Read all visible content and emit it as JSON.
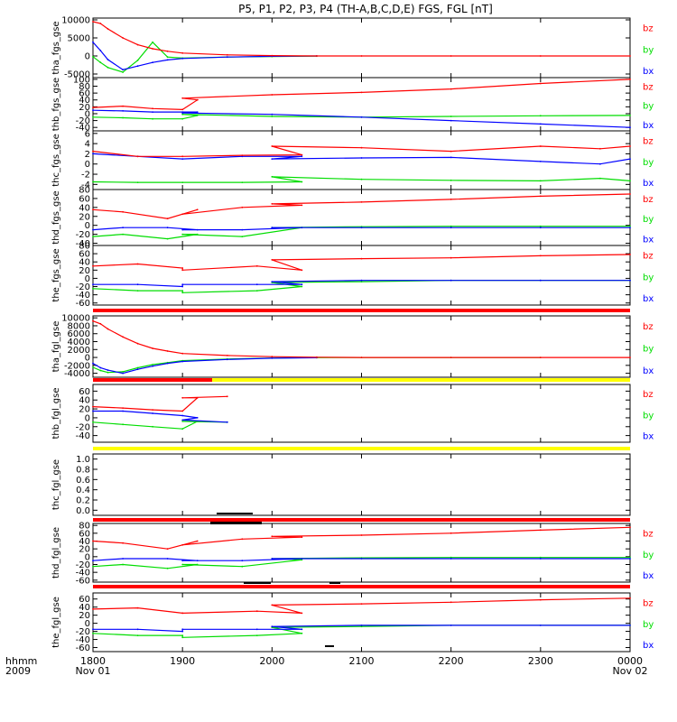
{
  "title": "P5, P1, P2, P3, P4 (TH-A,B,C,D,E) FGS, FGL [nT]",
  "colors": {
    "bx": "#0000ff",
    "by": "#00dd00",
    "bz": "#ff0000",
    "bar_red": "#ff0000",
    "bar_yellow": "#ffff00",
    "bar_black": "#000000"
  },
  "time_axis": {
    "row_label": "hhmm",
    "year_label": "2009",
    "ticks": [
      "1800",
      "1900",
      "2000",
      "2100",
      "2200",
      "2300",
      "0000"
    ],
    "date_labels": [
      "Nov 01",
      "Nov 02"
    ]
  },
  "chart_data": [
    {
      "type": "line",
      "panel": "tha_fgs_gse",
      "ylabel": "tha_fgs_gse",
      "yticks": [
        "10000",
        "5000",
        "0",
        "-5000"
      ],
      "ylim": [
        -6000,
        10500
      ],
      "legend": [
        "bz",
        "by",
        "bx"
      ],
      "x": [
        "1800",
        "1805",
        "1810",
        "1820",
        "1830",
        "1840",
        "1850",
        "1900",
        "1930",
        "2000",
        "2030",
        "2100",
        "2200",
        "2300",
        "0000"
      ],
      "series": [
        {
          "name": "bz",
          "values": [
            9500,
            9000,
            7500,
            5000,
            3100,
            2000,
            1300,
            800,
            300,
            100,
            0,
            0,
            0,
            0,
            0
          ]
        },
        {
          "name": "by",
          "values": [
            -200,
            -1800,
            -3200,
            -4500,
            -1200,
            3800,
            -300,
            -600,
            -300,
            -150,
            -50,
            null,
            null,
            null,
            null
          ]
        },
        {
          "name": "bx",
          "values": [
            3800,
            1500,
            -1000,
            -3800,
            -2800,
            -1800,
            -1100,
            -700,
            -300,
            -100,
            0,
            null,
            null,
            null,
            null
          ]
        }
      ]
    },
    {
      "type": "line",
      "panel": "thb_fgs_gse",
      "ylabel": "thb_fgs_gse",
      "yticks": [
        "100",
        "80",
        "60",
        "40",
        "20",
        "0",
        "-20",
        "-40"
      ],
      "ylim": [
        -50,
        105
      ],
      "legend": [
        "bz",
        "by",
        "bx"
      ],
      "x": [
        "1800",
        "1820",
        "1840",
        "1860",
        "1870",
        "1900",
        "2000",
        "2100",
        "2200",
        "2300",
        "0000"
      ],
      "series": [
        {
          "name": "bz",
          "values": [
            18,
            22,
            15,
            12,
            40,
            45,
            55,
            62,
            72,
            88,
            100
          ]
        },
        {
          "name": "by",
          "values": [
            -10,
            -12,
            -15,
            -15,
            -5,
            -2,
            -8,
            -10,
            -8,
            -6,
            -5
          ]
        },
        {
          "name": "bx",
          "values": [
            10,
            8,
            5,
            5,
            5,
            2,
            -2,
            -10,
            -20,
            -30,
            -40
          ]
        }
      ]
    },
    {
      "type": "line",
      "panel": "thc_fgs_gse",
      "ylabel": "thc_fgs_gse",
      "yticks": [
        "6",
        "4",
        "2",
        "0",
        "-2",
        "-4"
      ],
      "ylim": [
        -5,
        6.5
      ],
      "legend": [
        "bz",
        "by",
        "bx"
      ],
      "x": [
        "1800",
        "1830",
        "1900",
        "1940",
        "1980",
        "2000",
        "2100",
        "2200",
        "2300",
        "2340",
        "0000"
      ],
      "series": [
        {
          "name": "bz",
          "values": [
            2.5,
            1.5,
            1.5,
            1.7,
            1.8,
            3.5,
            3.2,
            2.5,
            3.5,
            3.0,
            3.5
          ]
        },
        {
          "name": "by",
          "values": [
            -3.5,
            -3.6,
            -3.6,
            -3.6,
            -3.5,
            -2.5,
            -3.0,
            -3.2,
            -3.3,
            -2.8,
            -3.3
          ]
        },
        {
          "name": "bx",
          "values": [
            2.0,
            1.5,
            1.0,
            1.5,
            1.5,
            1.0,
            1.2,
            1.3,
            0.5,
            0.0,
            1.0
          ]
        }
      ]
    },
    {
      "type": "line",
      "panel": "thd_fgs_gse",
      "ylabel": "thd_fgs_gse",
      "yticks": [
        "80",
        "60",
        "40",
        "20",
        "0",
        "-20",
        "-40"
      ],
      "ylim": [
        -45,
        80
      ],
      "legend": [
        "bz",
        "by",
        "bx"
      ],
      "x": [
        "1800",
        "1820",
        "1850",
        "1870",
        "1900",
        "1940",
        "1980",
        "2000",
        "2100",
        "2200",
        "2300",
        "0000"
      ],
      "series": [
        {
          "name": "bz",
          "values": [
            35,
            30,
            15,
            35,
            25,
            40,
            45,
            48,
            52,
            58,
            65,
            70
          ]
        },
        {
          "name": "by",
          "values": [
            -25,
            -20,
            -30,
            -20,
            -20,
            -25,
            -5,
            -5,
            -3,
            -2,
            -2,
            -2
          ]
        },
        {
          "name": "bx",
          "values": [
            -10,
            -5,
            -5,
            -10,
            -10,
            -10,
            -5,
            -5,
            -5,
            -5,
            -5,
            -5
          ]
        }
      ]
    },
    {
      "type": "line",
      "panel": "the_fgs_gse",
      "ylabel": "the_fgs_gse",
      "yticks": [
        "80",
        "60",
        "40",
        "20",
        "0",
        "-20",
        "-40",
        "-60"
      ],
      "ylim": [
        -65,
        80
      ],
      "legend": [
        "bz",
        "by",
        "bx"
      ],
      "x": [
        "1800",
        "1830",
        "1860",
        "1900",
        "1950",
        "1980",
        "2000",
        "2100",
        "2200",
        "2300",
        "0000"
      ],
      "series": [
        {
          "name": "bz",
          "values": [
            30,
            35,
            25,
            20,
            30,
            20,
            45,
            48,
            50,
            55,
            58
          ]
        },
        {
          "name": "by",
          "values": [
            -25,
            -30,
            -30,
            -35,
            -30,
            -20,
            -10,
            -8,
            -5,
            -5,
            -5
          ]
        },
        {
          "name": "bx",
          "values": [
            -15,
            -15,
            -20,
            -15,
            -15,
            -15,
            -8,
            -5,
            -5,
            -5,
            -5
          ]
        }
      ]
    },
    {
      "type": "line",
      "panel": "tha_fgl_gse",
      "ylabel": "tha_fgl_gse",
      "yticks": [
        "10000",
        "8000",
        "6000",
        "4000",
        "2000",
        "0",
        "-2000",
        "-4000"
      ],
      "ylim": [
        -5000,
        10500
      ],
      "legend": [
        "bz",
        "by",
        "bx"
      ],
      "x": [
        "1800",
        "1805",
        "1810",
        "1820",
        "1830",
        "1840",
        "1850",
        "1900",
        "1930",
        "2000",
        "2030",
        "2100",
        "2200",
        "2300",
        "0000"
      ],
      "series": [
        {
          "name": "bz",
          "values": [
            9200,
            8500,
            7200,
            5200,
            3500,
            2300,
            1600,
            1000,
            500,
            200,
            50,
            0,
            0,
            0,
            0
          ]
        },
        {
          "name": "by",
          "values": [
            -2500,
            -3300,
            -3800,
            -3600,
            -2600,
            -1800,
            -1300,
            -800,
            -400,
            -150,
            -50,
            0,
            0,
            0,
            null
          ]
        },
        {
          "name": "bx",
          "values": [
            -1500,
            -2600,
            -3200,
            -4000,
            -3000,
            -2200,
            -1500,
            -1000,
            -500,
            -200,
            -80,
            null,
            null,
            null,
            null
          ]
        }
      ]
    },
    {
      "type": "line",
      "panel": "thb_fgl_gse",
      "ylabel": "thb_fgl_gse",
      "yticks": [
        "60",
        "40",
        "20",
        "0",
        "-20",
        "-40"
      ],
      "ylim": [
        -55,
        75
      ],
      "legend": [
        "bz",
        "by",
        "bx"
      ],
      "x": [
        "1800",
        "1820",
        "1840",
        "1860",
        "1870",
        "1900",
        "1930"
      ],
      "series": [
        {
          "name": "bz",
          "values": [
            25,
            22,
            18,
            15,
            45,
            45,
            48
          ]
        },
        {
          "name": "by",
          "values": [
            -10,
            -15,
            -20,
            -25,
            -8,
            -8,
            -10
          ]
        },
        {
          "name": "bx",
          "values": [
            15,
            15,
            10,
            5,
            0,
            -5,
            -10
          ]
        }
      ]
    },
    {
      "type": "line",
      "panel": "thc_fgl_gse",
      "ylabel": "thc_fgl_gse",
      "yticks": [
        "1.0",
        "0.8",
        "0.6",
        "0.4",
        "0.2",
        "0.0"
      ],
      "ylim": [
        -0.1,
        1.1
      ],
      "series": []
    },
    {
      "type": "line",
      "panel": "thd_fgl_gse",
      "ylabel": "thd_fgl_gse",
      "yticks": [
        "80",
        "60",
        "40",
        "20",
        "0",
        "-20",
        "-40",
        "-60"
      ],
      "ylim": [
        -65,
        85
      ],
      "legend": [
        "bz",
        "by",
        "bx"
      ],
      "x": [
        "1800",
        "1820",
        "1850",
        "1870",
        "1900",
        "1940",
        "1980",
        "2000",
        "2100",
        "2200",
        "2300",
        "0000"
      ],
      "series": [
        {
          "name": "bz",
          "values": [
            40,
            35,
            20,
            40,
            30,
            45,
            50,
            52,
            55,
            60,
            68,
            75
          ]
        },
        {
          "name": "by",
          "values": [
            -25,
            -20,
            -30,
            -20,
            -20,
            -25,
            -8,
            -5,
            -3,
            -2,
            -2,
            -2
          ]
        },
        {
          "name": "bx",
          "values": [
            -10,
            -5,
            -5,
            -10,
            -10,
            -10,
            -5,
            -5,
            -5,
            -5,
            -5,
            -5
          ]
        }
      ]
    },
    {
      "type": "line",
      "panel": "the_fgl_gse",
      "ylabel": "the_fgl_gse",
      "yticks": [
        "60",
        "40",
        "20",
        "0",
        "-20",
        "-40",
        "-60"
      ],
      "ylim": [
        -70,
        75
      ],
      "legend": [
        "bz",
        "by",
        "bx"
      ],
      "x": [
        "1800",
        "1830",
        "1860",
        "1900",
        "1950",
        "1980",
        "2000",
        "2100",
        "2200",
        "2300",
        "0000"
      ],
      "series": [
        {
          "name": "bz",
          "values": [
            35,
            38,
            25,
            25,
            30,
            25,
            45,
            48,
            52,
            58,
            62
          ]
        },
        {
          "name": "by",
          "values": [
            -25,
            -30,
            -30,
            -35,
            -30,
            -25,
            -10,
            -8,
            -5,
            -5,
            -5
          ]
        },
        {
          "name": "bx",
          "values": [
            -15,
            -15,
            -20,
            -15,
            -15,
            -15,
            -8,
            -5,
            -5,
            -5,
            -5
          ]
        }
      ]
    }
  ]
}
